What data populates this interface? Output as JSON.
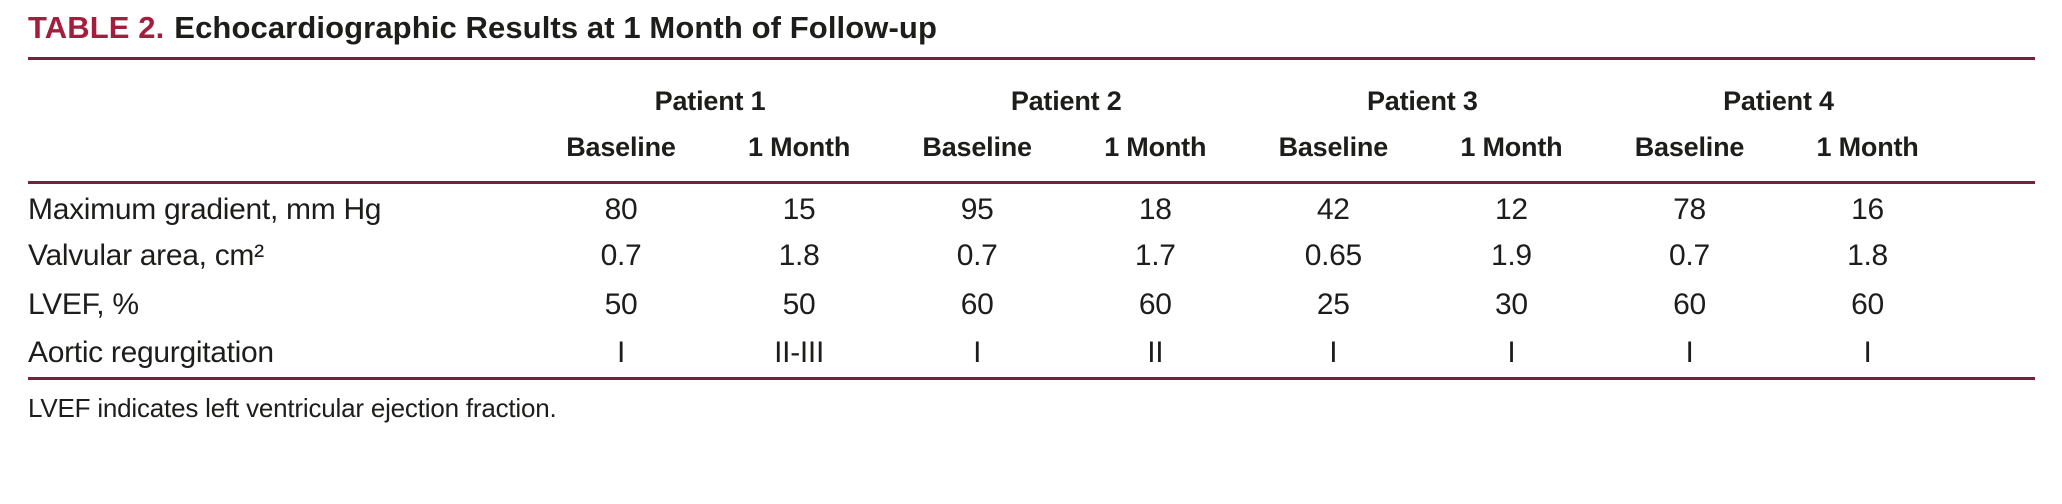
{
  "doc": {
    "title_label": "TABLE 2.",
    "title": "Echocardiographic Results at 1 Month of Follow-up",
    "patients": [
      "Patient 1",
      "Patient 2",
      "Patient 3",
      "Patient 4"
    ],
    "subheaders": {
      "baseline": "Baseline",
      "month": "1 Month"
    },
    "rows": [
      {
        "label": "Maximum gradient, mm Hg",
        "values": [
          "80",
          "15",
          "95",
          "18",
          "42",
          "12",
          "78",
          "16"
        ]
      },
      {
        "label": "Valvular area, cm²",
        "values": [
          "0.7",
          "1.8",
          "0.7",
          "1.7",
          "0.65",
          "1.9",
          "0.7",
          "1.8"
        ]
      },
      {
        "label": "LVEF, %",
        "values": [
          "50",
          "50",
          "60",
          "60",
          "25",
          "30",
          "60",
          "60"
        ]
      },
      {
        "label": "Aortic regurgitation",
        "values": [
          "I",
          "II-III",
          "I",
          "II",
          "I",
          "I",
          "I",
          "I"
        ]
      }
    ],
    "footnote": "LVEF indicates left ventricular ejection fraction.",
    "colors": {
      "accent_title": "#a31e3c",
      "rule": "#7b1f3e",
      "text": "#1d1d1b",
      "background": "#ffffff"
    }
  }
}
